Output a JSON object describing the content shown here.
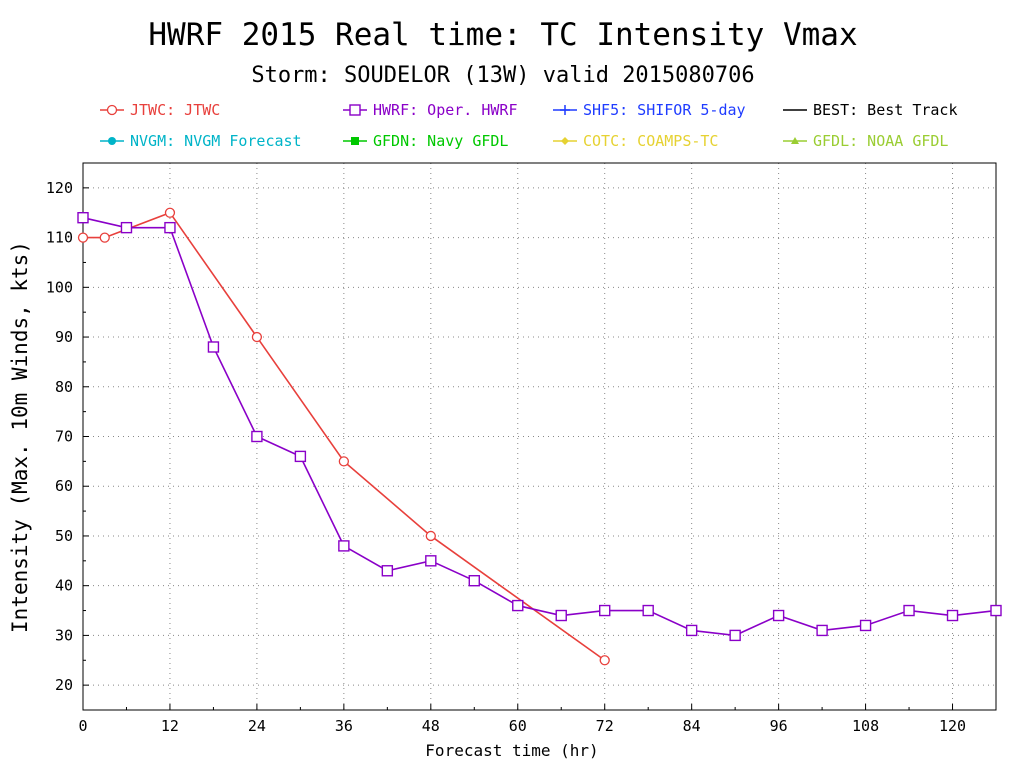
{
  "chart_data": {
    "type": "line",
    "title": "HWRF 2015 Real time: TC Intensity Vmax",
    "subtitle": "Storm: SOUDELOR (13W) valid 2015080706",
    "xlabel": "Forecast time (hr)",
    "ylabel": "Intensity (Max. 10m Winds, kts)",
    "xlim": [
      0,
      126
    ],
    "ylim": [
      15,
      125
    ],
    "xticks": [
      0,
      12,
      24,
      36,
      48,
      60,
      72,
      84,
      96,
      108,
      120
    ],
    "yticks": [
      20,
      30,
      40,
      50,
      60,
      70,
      80,
      90,
      100,
      110,
      120
    ],
    "grid": true,
    "legend": [
      {
        "label": "JTWC: JTWC",
        "color": "#e8403c",
        "marker": "circle"
      },
      {
        "label": "HWRF: Oper. HWRF",
        "color": "#8a00c8",
        "marker": "square"
      },
      {
        "label": "SHF5: SHIFOR 5-day",
        "color": "#1f3cff",
        "marker": "plus"
      },
      {
        "label": "BEST: Best Track",
        "color": "#000000",
        "marker": "none"
      },
      {
        "label": "NVGM: NVGM Forecast",
        "color": "#00b4c8",
        "marker": "dot"
      },
      {
        "label": "GFDN: Navy GFDL",
        "color": "#00c800",
        "marker": "filled-square"
      },
      {
        "label": "COTC: COAMPS-TC",
        "color": "#e6d232",
        "marker": "diamond"
      },
      {
        "label": "GFDL: NOAA GFDL",
        "color": "#9acd32",
        "marker": "triangle"
      }
    ],
    "series": [
      {
        "name": "JTWC: JTWC",
        "color": "#e8403c",
        "marker": "circle",
        "x": [
          0,
          3,
          12,
          24,
          36,
          48,
          72
        ],
        "y": [
          110,
          110,
          115,
          90,
          65,
          50,
          25
        ]
      },
      {
        "name": "HWRF: Oper. HWRF",
        "color": "#8a00c8",
        "marker": "square",
        "x": [
          0,
          6,
          12,
          18,
          24,
          30,
          36,
          42,
          48,
          54,
          60,
          66,
          72,
          78,
          84,
          90,
          96,
          102,
          108,
          114,
          120,
          126
        ],
        "y": [
          114,
          112,
          112,
          88,
          70,
          66,
          48,
          43,
          45,
          41,
          36,
          34,
          35,
          35,
          31,
          30,
          34,
          31,
          32,
          35,
          34,
          35
        ]
      }
    ]
  }
}
